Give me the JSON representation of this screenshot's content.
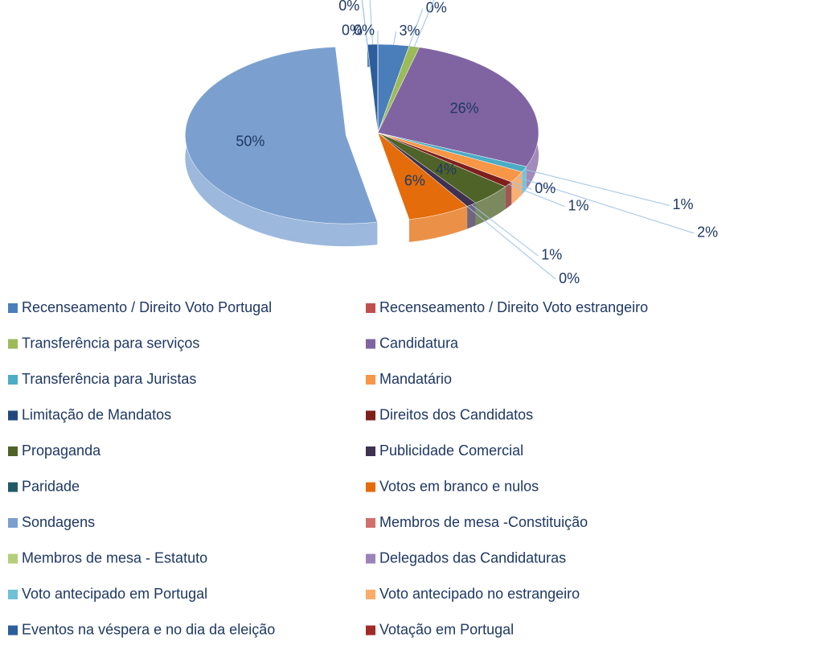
{
  "chart_data": {
    "type": "pie",
    "categories": [
      "Recenseamento / Direito Voto Portugal",
      "Recenseamento / Direito Voto estrangeiro",
      "Transferência para serviços",
      "Candidatura",
      "Transferência para Juristas",
      "Mandatário",
      "Limitação de Mandatos",
      "Direitos dos Candidatos",
      "Propaganda",
      "Publicidade Comercial",
      "Paridade",
      "Votos em branco e nulos",
      "Sondagens",
      "Membros de mesa -Constituição",
      "Membros de mesa - Estatuto",
      "Delegados das Candidaturas",
      "Voto antecipado em Portugal",
      "Voto antecipado no estrangeiro",
      "Eventos na véspera e no dia da eleição",
      "Votação em Portugal"
    ],
    "values": [
      3,
      0,
      1,
      26,
      1,
      2,
      0,
      1,
      4,
      1,
      0,
      6,
      50,
      0,
      0,
      0,
      0,
      0,
      1,
      0
    ],
    "value_labels": [
      "3%",
      "0%",
      "1%",
      "26%",
      "1%",
      "2%",
      "0%",
      "1%",
      "4%",
      "1%",
      "0%",
      "6%",
      "50%",
      "0%",
      "0%",
      "0%",
      "0%",
      "0%",
      "1%",
      "0%"
    ],
    "colors": [
      "#4a7ebb",
      "#c0504d",
      "#9bbb59",
      "#8064a2",
      "#4bacc6",
      "#f79646",
      "#1f497d",
      "#7f1f1c",
      "#4f6228",
      "#3f3151",
      "#215967",
      "#e46c0a",
      "#7ba0d0",
      "#d0706d",
      "#b3cf7a",
      "#9c84bb",
      "#6fc0d6",
      "#f9ac6b",
      "#2c5d9c",
      "#a02b27"
    ],
    "exploded": [
      12
    ]
  }
}
